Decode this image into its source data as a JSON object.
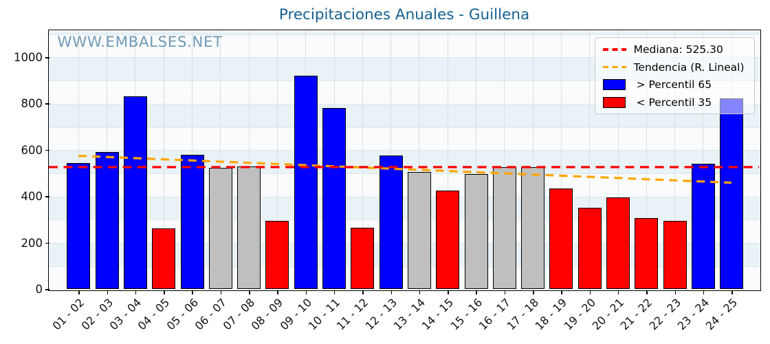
{
  "chart_data": {
    "type": "bar",
    "title": "Precipitaciones Anuales - Guillena",
    "watermark": "WWW.EMBALSES.NET",
    "categories": [
      "01 - 02",
      "02 - 03",
      "03 - 04",
      "04 - 05",
      "05 - 06",
      "06 - 07",
      "07 - 08",
      "08 - 09",
      "09 - 10",
      "10 - 11",
      "11 - 12",
      "12 - 13",
      "13 - 14",
      "14 - 15",
      "15 - 16",
      "16 - 17",
      "17 - 18",
      "18 - 19",
      "19 - 20",
      "20 - 21",
      "21 - 22",
      "22 - 23",
      "23 - 24",
      "24 - 25"
    ],
    "values": [
      545,
      590,
      830,
      262,
      580,
      524,
      528,
      296,
      920,
      781,
      265,
      575,
      506,
      425,
      497,
      526,
      526,
      433,
      351,
      397,
      308,
      294,
      541,
      822
    ],
    "bar_classes": [
      "above_p65",
      "above_p65",
      "above_p65",
      "below_p35",
      "above_p65",
      "mid",
      "mid",
      "below_p35",
      "above_p65",
      "above_p65",
      "below_p35",
      "above_p65",
      "mid",
      "below_p35",
      "mid",
      "mid",
      "mid",
      "below_p35",
      "below_p35",
      "below_p35",
      "below_p35",
      "below_p35",
      "above_p65",
      "above_p65"
    ],
    "median": 525.3,
    "trend_line": {
      "start_value": 574,
      "end_value": 458
    },
    "ylim": [
      0,
      1115
    ],
    "yticks": [
      0,
      200,
      400,
      600,
      800,
      1000
    ],
    "grid": true,
    "legend_position": "upper right",
    "colors": {
      "above_p65": "#0000ff",
      "below_p35": "#ff0000",
      "mid": "#bfbfbf",
      "bar_edge": "#000000",
      "median_line": "#ff0000",
      "trend_line": "#ffa500",
      "title": "#15608f",
      "watermark": "rgba(27,95,140,0.62)",
      "stripe_blue": "#e9f2f6",
      "stripe_white": "#fafbfc",
      "vgrid": "#d8dfe1",
      "hgrid": "#dfe7ea"
    },
    "legend": {
      "items": [
        {
          "swatch": "dashed-line",
          "color": "#ff0000",
          "label": "Mediana: 525.30"
        },
        {
          "swatch": "dashed-line",
          "color": "#ffa500",
          "label": "Tendencia (R. Lineal)"
        },
        {
          "swatch": "rect",
          "color": "#0000ff",
          "label": "> Percentil 65"
        },
        {
          "swatch": "rect",
          "color": "#ff0000",
          "label": "< Percentil 35"
        }
      ]
    }
  }
}
